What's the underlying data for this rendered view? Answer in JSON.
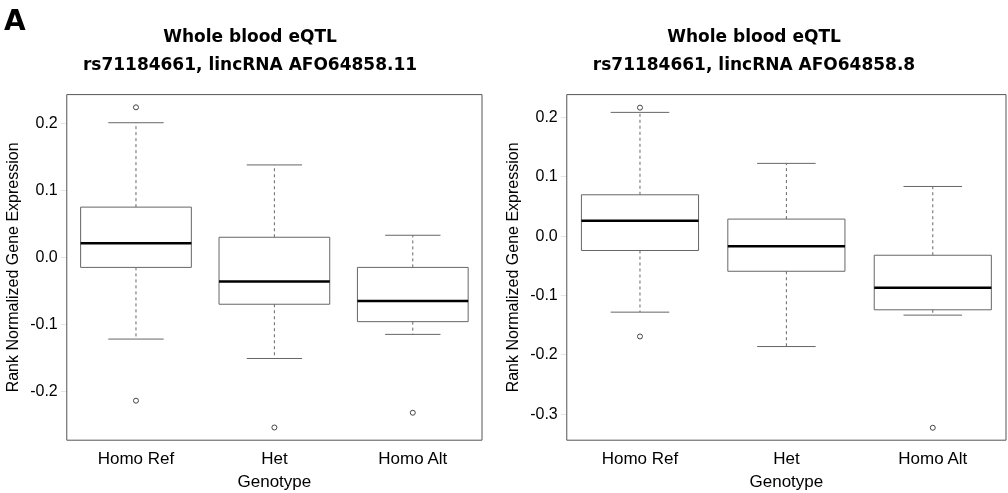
{
  "chart_data": [
    {
      "type": "box",
      "title": "Whole blood eQTL\nrs71184661, lincRNA AFO64858.11",
      "annotations": [
        "A"
      ],
      "xlabel": "Genotype",
      "ylabel": "Rank Normalized Gene Expression",
      "categories": [
        "Homo Ref",
        "Het",
        "Homo Alt"
      ],
      "boxes": [
        {
          "low": -0.122,
          "q1": -0.015,
          "median": 0.021,
          "q3": 0.075,
          "high": 0.201,
          "outliers": [
            0.224,
            -0.214
          ]
        },
        {
          "low": -0.151,
          "q1": -0.07,
          "median": -0.036,
          "q3": 0.03,
          "high": 0.138,
          "outliers": [
            -0.254
          ]
        },
        {
          "low": -0.115,
          "q1": -0.096,
          "median": -0.065,
          "q3": -0.015,
          "high": 0.033,
          "outliers": [
            -0.232
          ]
        }
      ],
      "ylim": [
        -0.273,
        0.243
      ],
      "yticks": [
        -0.2,
        -0.1,
        {
          "value": 0,
          "label": "0.0"
        },
        0.1,
        0.2
      ],
      "grid": false
    },
    {
      "type": "box",
      "title": "Whole blood eQTL\nrs71184661, lincRNA AFO64858.8",
      "xlabel": "Genotype",
      "ylabel": "Rank Normalized Gene Expression",
      "categories": [
        "Homo Ref",
        "Het",
        "Homo Alt"
      ],
      "boxes": [
        {
          "low": -0.128,
          "q1": -0.024,
          "median": 0.026,
          "q3": 0.07,
          "high": 0.209,
          "outliers": [
            0.217,
            -0.169
          ]
        },
        {
          "low": -0.186,
          "q1": -0.059,
          "median": -0.017,
          "q3": 0.029,
          "high": 0.123
        },
        {
          "low": -0.133,
          "q1": -0.124,
          "median": -0.087,
          "q3": -0.032,
          "high": 0.084,
          "outliers": [
            -0.323
          ]
        }
      ],
      "ylim": [
        -0.344,
        0.239
      ],
      "yticks": [
        -0.3,
        -0.2,
        -0.1,
        {
          "value": 0,
          "label": "0.0"
        },
        0.1,
        0.2
      ],
      "grid": false
    }
  ]
}
